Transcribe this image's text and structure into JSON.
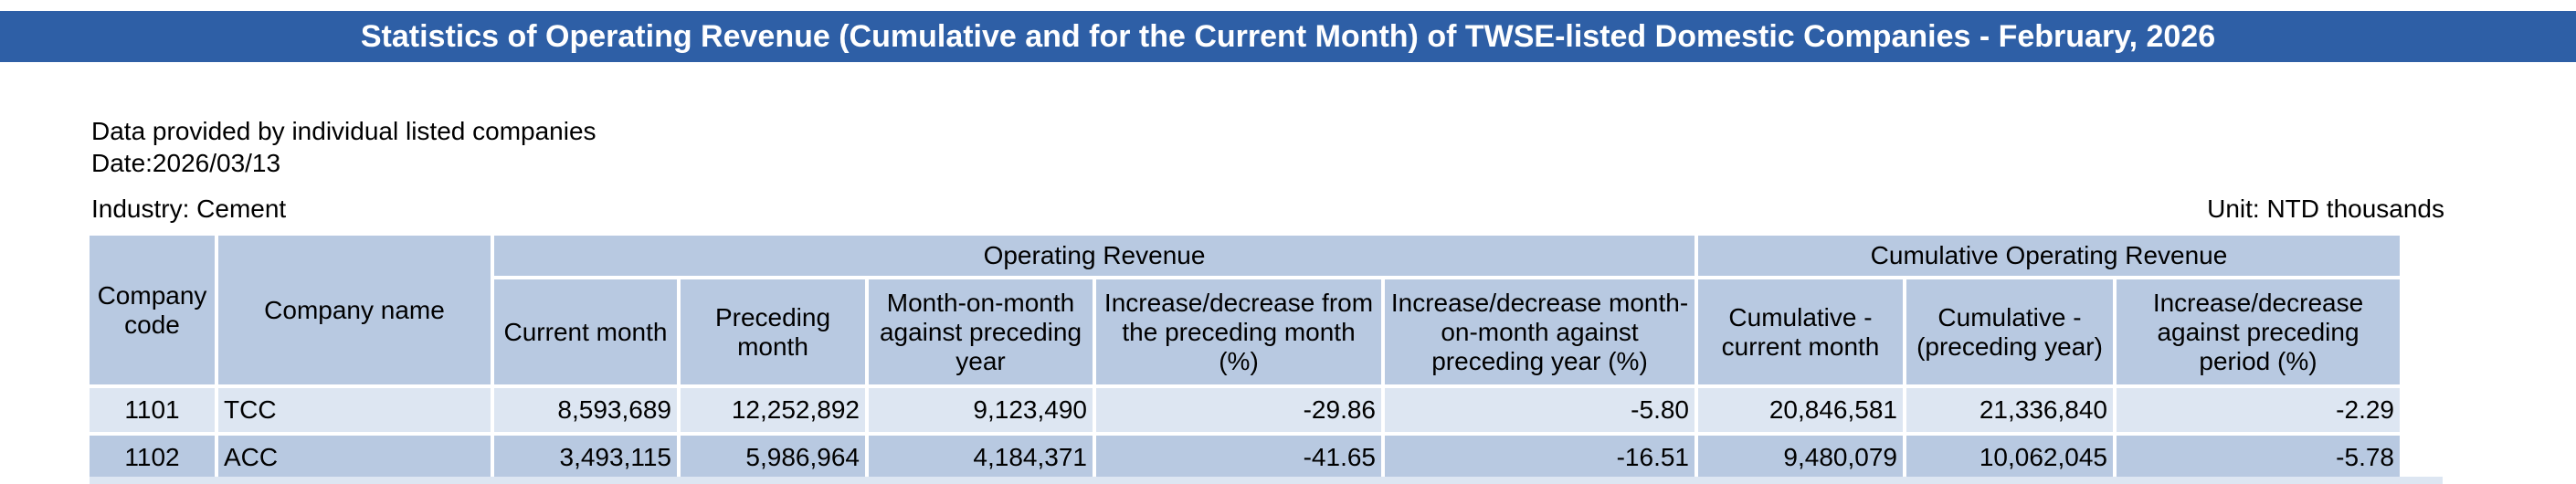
{
  "title": "Statistics of Operating Revenue (Cumulative and for the Current Month) of TWSE-listed Domestic Companies - February, 2026",
  "info": {
    "provided_by": "Data provided by individual listed companies",
    "date": "Date:2026/03/13"
  },
  "industry": "Industry: Cement",
  "unit": "Unit: NTD thousands",
  "table": {
    "group_headers": {
      "operating_revenue": "Operating Revenue",
      "cumulative_operating_revenue": "Cumulative Operating Revenue"
    },
    "columns": {
      "company_code": "Company code",
      "company_name": "Company name",
      "current_month": "Current month",
      "preceding_month": "Preceding month",
      "mom_preceding_year": "Month-on-month against preceding year",
      "change_preceding_month": "Increase/decrease from the preceding month (%)",
      "change_mom_preceding_year": "Increase/decrease month-on-month against preceding year (%)",
      "cumulative_current_month": "Cumulative - current month",
      "cumulative_preceding_year": "Cumulative - (preceding year)",
      "change_preceding_period": "Increase/decrease against preceding period (%)"
    },
    "rows": [
      {
        "code": "1101",
        "name": "TCC",
        "current_month": "8,593,689",
        "preceding_month": "12,252,892",
        "mom_preceding_year": "9,123,490",
        "change_preceding_month": "-29.86",
        "change_mom_preceding_year": "-5.80",
        "cumulative_current_month": "20,846,581",
        "cumulative_preceding_year": "21,336,840",
        "change_preceding_period": "-2.29"
      },
      {
        "code": "1102",
        "name": "ACC",
        "current_month": "3,493,115",
        "preceding_month": "5,986,964",
        "mom_preceding_year": "4,184,371",
        "change_preceding_month": "-41.65",
        "change_mom_preceding_year": "-16.51",
        "cumulative_current_month": "9,480,079",
        "cumulative_preceding_year": "10,062,045",
        "change_preceding_period": "-5.78"
      }
    ]
  }
}
